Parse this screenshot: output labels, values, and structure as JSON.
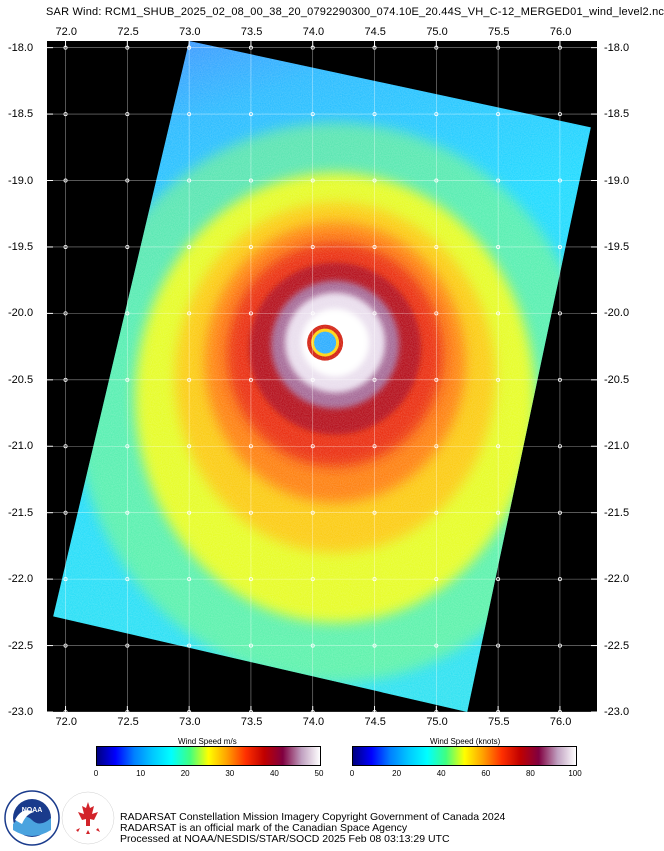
{
  "title": "SAR Wind: RCM1_SHUB_2025_02_08_00_38_20_0792290300_074.10E_20.44S_VH_C-12_MERGED01_wind_level2.nc",
  "map": {
    "lon_ticks": [
      "72.0",
      "72.5",
      "73.0",
      "73.5",
      "74.0",
      "74.5",
      "75.0",
      "75.5",
      "76.0"
    ],
    "lat_ticks": [
      "-18.0",
      "-18.5",
      "-19.0",
      "-19.5",
      "-20.0",
      "-20.5",
      "-21.0",
      "-21.5",
      "-22.0",
      "-22.5",
      "-23.0"
    ],
    "lon_range": [
      71.85,
      76.3
    ],
    "lat_range": [
      -23.0,
      -17.95
    ],
    "storm_center": {
      "lon": 74.1,
      "lat": -20.22
    },
    "swath_corners": [
      {
        "lon": 73.0,
        "lat": -17.95
      },
      {
        "lon": 76.25,
        "lat": -18.6
      },
      {
        "lon": 75.25,
        "lat": -23.0
      },
      {
        "lon": 71.9,
        "lat": -22.28
      }
    ]
  },
  "colorbars": [
    {
      "title": "Wind Speed m/s",
      "ticks": [
        "0",
        "10",
        "20",
        "30",
        "40",
        "50"
      ],
      "max": 50
    },
    {
      "title": "Wind Speed (knots)",
      "ticks": [
        "0",
        "20",
        "40",
        "60",
        "80",
        "100"
      ],
      "max": 100
    }
  ],
  "colors": {
    "scale": [
      "#000080",
      "#0000ff",
      "#0080ff",
      "#00c8ff",
      "#00ffff",
      "#40ff80",
      "#ffff00",
      "#ffa000",
      "#ff3000",
      "#c00000",
      "#800040",
      "#c0a0c0",
      "#ffffff"
    ]
  },
  "logos": {
    "noaa_text": "NOAA",
    "noaa_ring": "NATIONAL OCEANIC AND ATMOSPHERIC ADMINISTRATION · U.S. DEPARTMENT OF COMMERCE",
    "csa_ring": "CANADIAN SPACE AGENCY · AGENCE SPATIALE CANADIENNE"
  },
  "credits": [
    "RADARSAT Constellation Mission Imagery Copyright Government of Canada 2024",
    "RADARSAT is an official mark of the Canadian Space Agency",
    "Processed at NOAA/NESDIS/STAR/SOCD 2025 Feb 08 03:13:29 UTC"
  ]
}
